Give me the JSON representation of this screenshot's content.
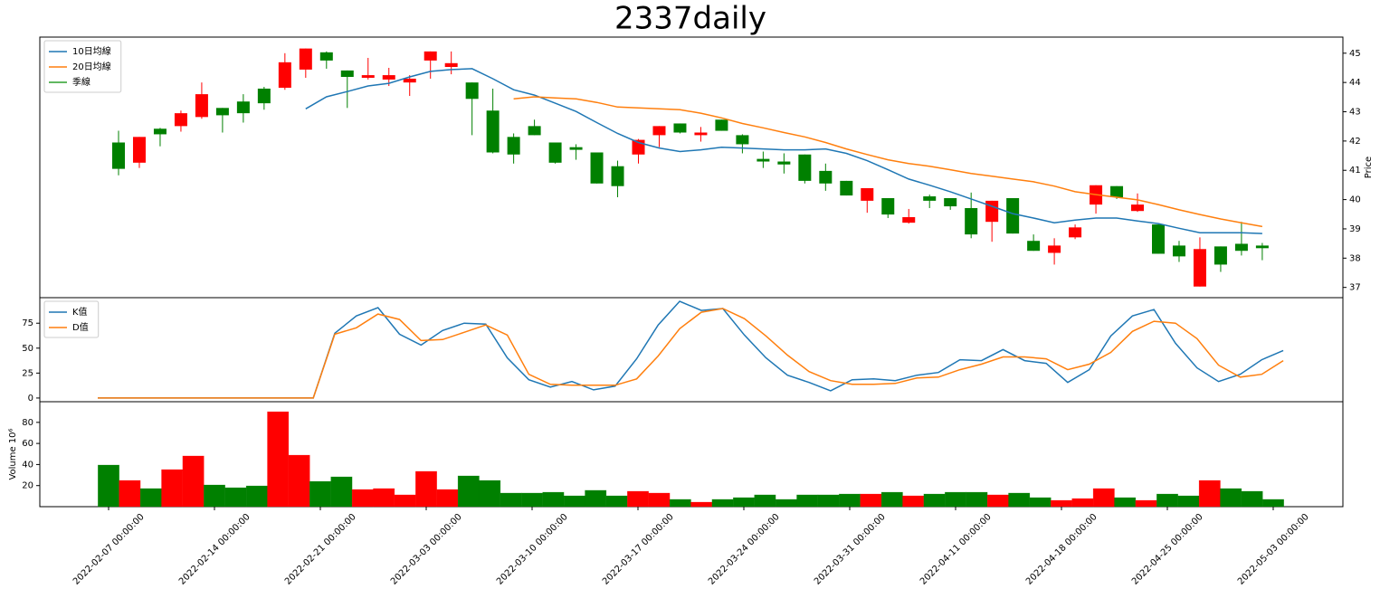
{
  "chart_data": [
    {
      "type": "candlestick",
      "title": "2337daily",
      "ylabel": "Price",
      "open": [
        41.95,
        41.26,
        42.42,
        42.51,
        42.82,
        43.13,
        43.35,
        43.79,
        43.82,
        44.44,
        45.03,
        44.41,
        44.16,
        44.1,
        44.0,
        44.75,
        44.53,
        44.0,
        43.04,
        42.14,
        42.51,
        41.95,
        41.79,
        41.61,
        41.14,
        41.54,
        42.2,
        42.6,
        42.2,
        42.73,
        42.2,
        41.39,
        41.3,
        41.54,
        40.98,
        40.64,
        39.96,
        40.05,
        39.21,
        40.11,
        40.05,
        39.71,
        39.24,
        40.05,
        38.59,
        38.18,
        38.71,
        39.83,
        40.46,
        39.61,
        39.15,
        38.43,
        37.03,
        38.4,
        38.49,
        38.43
      ],
      "high": [
        42.35,
        42.14,
        42.45,
        43.04,
        44.0,
        43.13,
        43.6,
        43.85,
        45.0,
        45.16,
        45.06,
        44.41,
        44.84,
        44.5,
        44.25,
        45.06,
        45.06,
        44.0,
        43.79,
        42.26,
        42.73,
        41.95,
        41.89,
        41.61,
        41.33,
        42.07,
        42.51,
        42.6,
        42.48,
        42.73,
        42.23,
        41.64,
        41.58,
        41.54,
        41.23,
        40.64,
        40.39,
        40.05,
        39.68,
        40.17,
        40.05,
        40.24,
        39.96,
        40.05,
        38.81,
        38.68,
        39.15,
        40.49,
        40.46,
        40.21,
        39.15,
        38.59,
        38.71,
        38.4,
        39.24,
        38.52
      ],
      "low": [
        40.83,
        41.08,
        41.82,
        42.32,
        42.76,
        42.29,
        42.63,
        43.07,
        43.75,
        44.16,
        44.47,
        43.13,
        44.1,
        43.88,
        43.54,
        44.13,
        44.28,
        42.2,
        41.58,
        41.23,
        42.2,
        41.23,
        41.36,
        40.55,
        40.08,
        41.23,
        41.79,
        42.26,
        41.98,
        42.35,
        41.58,
        41.08,
        40.89,
        40.55,
        40.3,
        40.14,
        39.55,
        39.37,
        39.18,
        39.71,
        39.65,
        38.68,
        38.56,
        38.84,
        38.25,
        37.78,
        38.65,
        39.52,
        40.02,
        39.58,
        38.15,
        37.87,
        37.03,
        37.53,
        38.09,
        37.93
      ],
      "close": [
        41.05,
        42.14,
        42.23,
        42.95,
        43.6,
        42.88,
        42.95,
        43.29,
        44.69,
        45.16,
        44.75,
        44.19,
        44.25,
        44.25,
        44.13,
        45.06,
        44.66,
        43.44,
        41.61,
        41.54,
        42.2,
        41.26,
        41.7,
        40.55,
        40.46,
        42.04,
        42.51,
        42.29,
        42.29,
        42.35,
        41.89,
        41.3,
        41.2,
        40.64,
        40.55,
        40.14,
        40.39,
        39.49,
        39.4,
        39.96,
        39.77,
        38.81,
        39.96,
        38.84,
        38.25,
        38.43,
        39.05,
        40.49,
        40.08,
        39.83,
        38.15,
        38.06,
        38.31,
        37.78,
        38.25,
        38.34
      ],
      "up_color": "#ff0000",
      "down_color": "#008000",
      "series": [
        {
          "name": "10日均線",
          "color": "#1f77b4",
          "values": [
            null,
            null,
            null,
            null,
            null,
            null,
            null,
            null,
            null,
            43.1,
            43.51,
            43.69,
            43.88,
            43.97,
            44.19,
            44.38,
            44.44,
            44.47,
            44.13,
            43.75,
            43.57,
            43.29,
            43.01,
            42.63,
            42.26,
            41.95,
            41.76,
            41.64,
            41.7,
            41.79,
            41.76,
            41.73,
            41.7,
            41.7,
            41.73,
            41.58,
            41.33,
            41.02,
            40.7,
            40.49,
            40.27,
            40.02,
            39.77,
            39.52,
            39.37,
            39.21,
            39.3,
            39.37,
            39.37,
            39.27,
            39.18,
            39.02,
            38.87,
            38.87,
            38.87,
            38.84
          ]
        },
        {
          "name": "20日均線",
          "color": "#ff7f0e",
          "values": [
            null,
            null,
            null,
            null,
            null,
            null,
            null,
            null,
            null,
            null,
            null,
            null,
            null,
            null,
            null,
            null,
            null,
            null,
            null,
            43.44,
            43.51,
            43.47,
            43.44,
            43.32,
            43.16,
            43.13,
            43.1,
            43.07,
            42.95,
            42.79,
            42.6,
            42.45,
            42.29,
            42.14,
            41.95,
            41.73,
            41.54,
            41.36,
            41.23,
            41.14,
            41.02,
            40.89,
            40.8,
            40.7,
            40.61,
            40.46,
            40.27,
            40.17,
            40.08,
            39.99,
            39.83,
            39.65,
            39.49,
            39.34,
            39.21,
            39.08
          ]
        },
        {
          "name": "季線",
          "color": "#2ca02c",
          "values": [
            null,
            null,
            null,
            null,
            null,
            null,
            null,
            null,
            null,
            null,
            null,
            null,
            null,
            null,
            null,
            null,
            null,
            null,
            null,
            null,
            null,
            null,
            null,
            null,
            null,
            null,
            null,
            null,
            null,
            null,
            null,
            null,
            null,
            null,
            null,
            null,
            null,
            null,
            null,
            null,
            null,
            null,
            null,
            null,
            null,
            null,
            null,
            null,
            null,
            null,
            null,
            null,
            null,
            null,
            null,
            null
          ]
        }
      ],
      "ylim": [
        36.65,
        45.55
      ],
      "yticks": [
        37,
        38,
        39,
        40,
        41,
        42,
        43,
        44,
        45
      ],
      "legend": "upper left"
    },
    {
      "type": "line",
      "series": [
        {
          "name": "K值",
          "color": "#1f77b4",
          "values": [
            0,
            0,
            0,
            0,
            0,
            0,
            0,
            0,
            0,
            0,
            0,
            65.0,
            82.3,
            90.6,
            64.0,
            53.1,
            67.7,
            75.0,
            74.1,
            40.3,
            18.3,
            11.0,
            16.5,
            8.2,
            11.9,
            39.3,
            73.2,
            97.0,
            87.8,
            89.7,
            63.1,
            40.3,
            22.9,
            15.6,
            7.3,
            18.3,
            19.2,
            17.4,
            22.9,
            25.6,
            38.4,
            37.5,
            48.5,
            37.5,
            34.8,
            15.6,
            28.4,
            62.2,
            82.3,
            88.7,
            54.9,
            30.2,
            16.5,
            23.8,
            38.4,
            47.6
          ]
        },
        {
          "name": "D值",
          "color": "#ff7f0e",
          "values": [
            0,
            0,
            0,
            0,
            0,
            0,
            0,
            0,
            0,
            0,
            0,
            64.0,
            70.4,
            84.2,
            78.7,
            57.6,
            58.6,
            65.9,
            73.2,
            63.1,
            23.8,
            13.7,
            12.8,
            12.8,
            12.8,
            19.2,
            42.1,
            69.5,
            86.0,
            89.7,
            79.6,
            62.2,
            43.0,
            26.5,
            17.4,
            13.7,
            13.7,
            14.6,
            20.1,
            21.0,
            28.4,
            33.9,
            41.2,
            41.2,
            39.3,
            28.4,
            33.9,
            45.7,
            66.8,
            76.9,
            75.0,
            59.5,
            32.9,
            21.0,
            23.8,
            37.5
          ]
        }
      ],
      "ylim": [
        -3.7,
        100.6
      ],
      "yticks": [
        0,
        25,
        50,
        75
      ],
      "legend": "upper left"
    },
    {
      "type": "bar",
      "ylabel": "Volume 10⁶",
      "categories": [
        "2022-02-07 00:00:00",
        null,
        null,
        null,
        null,
        "2022-02-14 00:00:00",
        null,
        null,
        null,
        null,
        "2022-02-21 00:00:00",
        null,
        null,
        null,
        null,
        "2022-03-03 00:00:00",
        null,
        null,
        null,
        null,
        "2022-03-10 00:00:00",
        null,
        null,
        null,
        null,
        "2022-03-17 00:00:00",
        null,
        null,
        null,
        null,
        "2022-03-24 00:00:00",
        null,
        null,
        null,
        null,
        "2022-03-31 00:00:00",
        null,
        null,
        null,
        null,
        "2022-04-11 00:00:00",
        null,
        null,
        null,
        null,
        "2022-04-18 00:00:00",
        null,
        null,
        null,
        null,
        "2022-04-25 00:00:00",
        null,
        null,
        null,
        null,
        "2022-05-03 00:00:00"
      ],
      "values": [
        39.5,
        24.9,
        17.2,
        35.2,
        48.1,
        20.6,
        18.0,
        19.7,
        90.1,
        48.9,
        24.0,
        28.3,
        16.3,
        17.2,
        11.2,
        33.5,
        16.3,
        29.2,
        24.9,
        12.9,
        12.9,
        13.7,
        10.3,
        15.5,
        10.3,
        14.6,
        12.9,
        6.9,
        4.3,
        6.9,
        8.6,
        11.2,
        6.9,
        11.2,
        11.2,
        12.0,
        12.0,
        13.7,
        10.3,
        12.0,
        13.7,
        13.7,
        11.2,
        12.9,
        8.6,
        6.0,
        7.7,
        17.2,
        8.6,
        6.0,
        12.0,
        10.3,
        24.9,
        17.2,
        14.6,
        6.9
      ],
      "up_color": "#ff0000",
      "down_color": "#008000",
      "ylim": [
        0,
        99.6
      ],
      "yticks": [
        20,
        40,
        60,
        80
      ]
    }
  ]
}
